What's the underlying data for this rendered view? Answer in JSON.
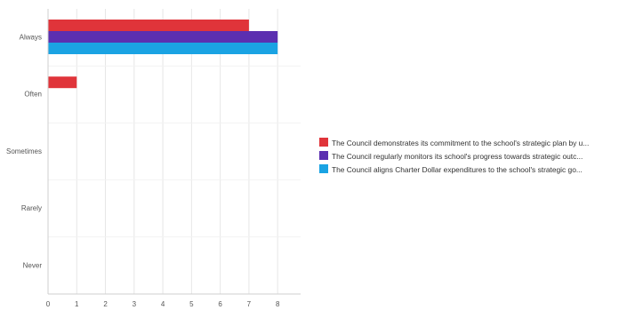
{
  "chart_data": {
    "type": "bar",
    "orientation": "horizontal",
    "categories": [
      "Always",
      "Often",
      "Sometimes",
      "Rarely",
      "Never"
    ],
    "series": [
      {
        "name": "The Council demonstrates its commitment to the school's strategic plan by u...",
        "color": "#e0343a",
        "values": [
          7,
          1,
          0,
          0,
          0
        ]
      },
      {
        "name": "The Council regularly monitors its school's progress towards strategic outc...",
        "color": "#5b2fb0",
        "values": [
          8,
          0,
          0,
          0,
          0
        ]
      },
      {
        "name": "The Council aligns Charter Dollar expenditures to the school's strategic go...",
        "color": "#1aa3e3",
        "values": [
          8,
          0,
          0,
          0,
          0
        ]
      }
    ],
    "xticks": [
      0,
      1,
      2,
      3,
      4,
      5,
      6,
      7,
      8
    ],
    "xlim": [
      0,
      8.8
    ],
    "title": "",
    "xlabel": "",
    "ylabel": "",
    "grid": true,
    "legend_position": "right"
  }
}
